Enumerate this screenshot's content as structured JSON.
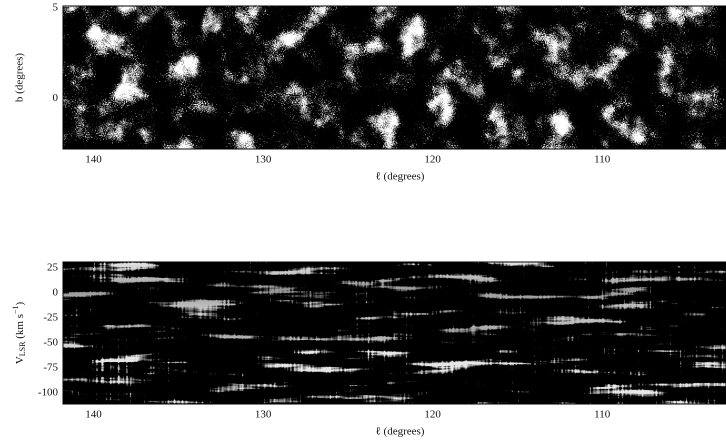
{
  "chart_data": [
    {
      "type": "image",
      "x_label": "ℓ (degrees)",
      "y_label": "b (degrees)",
      "xlim": [
        141.8,
        102.7
      ],
      "xticks": [
        140,
        130,
        120,
        110
      ],
      "ylim": [
        -2.8,
        5.1
      ],
      "yticks": [
        0,
        5
      ]
    },
    {
      "type": "image",
      "x_label": "ℓ (degrees)",
      "y_label_parts": [
        "V",
        "LSR",
        " (km s",
        "−1",
        ")"
      ],
      "xlim": [
        141.8,
        102.7
      ],
      "xticks": [
        140,
        130,
        120,
        110
      ],
      "ylim": [
        -111,
        31
      ],
      "yticks": [
        25,
        0,
        -25,
        -50,
        -75,
        -100
      ]
    }
  ]
}
